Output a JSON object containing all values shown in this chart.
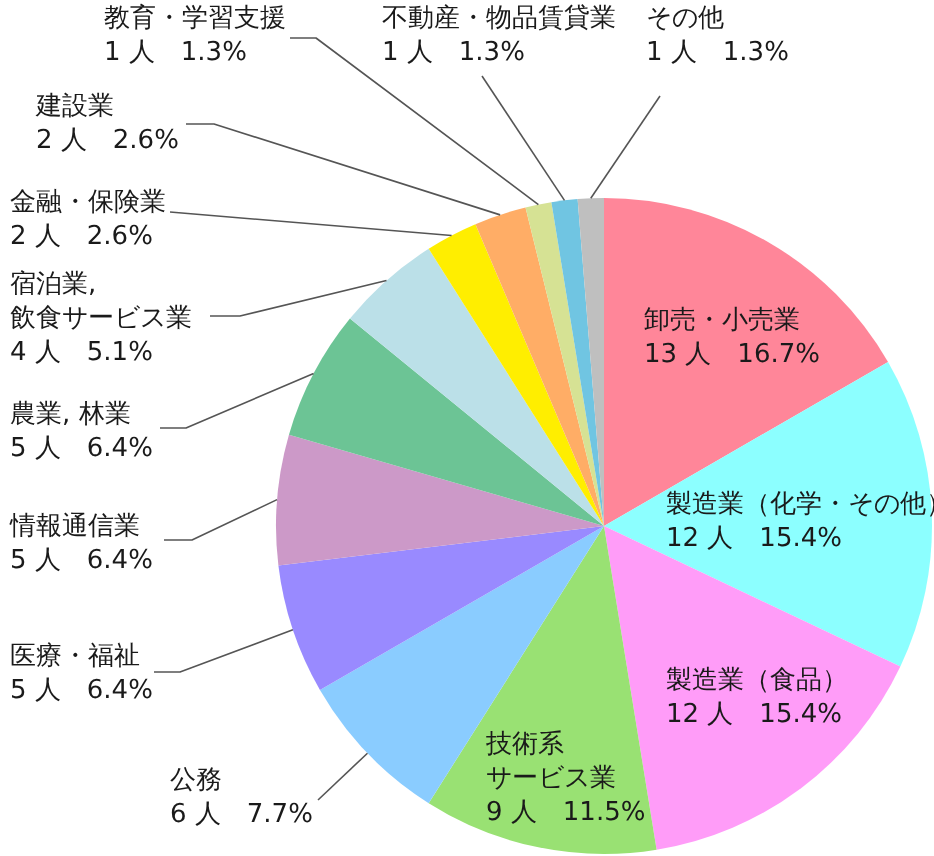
{
  "chart_data": {
    "type": "pie",
    "categories": [
      "卸売・小売業",
      "製造業（化学・その他）",
      "製造業（食品）",
      "技術系サービス業",
      "公務",
      "医療・福祉",
      "情報通信業",
      "農業, 林業",
      "宿泊業, 飲食サービス業",
      "金融・保険業",
      "建設業",
      "教育・学習支援",
      "不動産・物品賃貸業",
      "その他"
    ],
    "values": [
      13,
      12,
      12,
      9,
      6,
      5,
      5,
      5,
      4,
      2,
      2,
      1,
      1,
      1
    ],
    "value_labels": [
      "13 人　16.7%",
      "12 人　15.4%",
      "12 人　15.4%",
      "9 人　11.5%",
      "6 人　7.7%",
      "5 人　6.4%",
      "5 人　6.4%",
      "5 人　6.4%",
      "4 人　5.1%",
      "2 人　2.6%",
      "2 人　2.6%",
      "1 人　1.3%",
      "1 人　1.3%",
      "1 人　1.3%"
    ],
    "colors": [
      "#ff8699",
      "#8cffff",
      "#ff9cf8",
      "#99e173",
      "#8accff",
      "#998aff",
      "#cc99c8",
      "#6cc495",
      "#bbe0e8",
      "#ffee00",
      "#ffad66",
      "#d6e294",
      "#70c5e2",
      "#bfbfbf"
    ]
  }
}
